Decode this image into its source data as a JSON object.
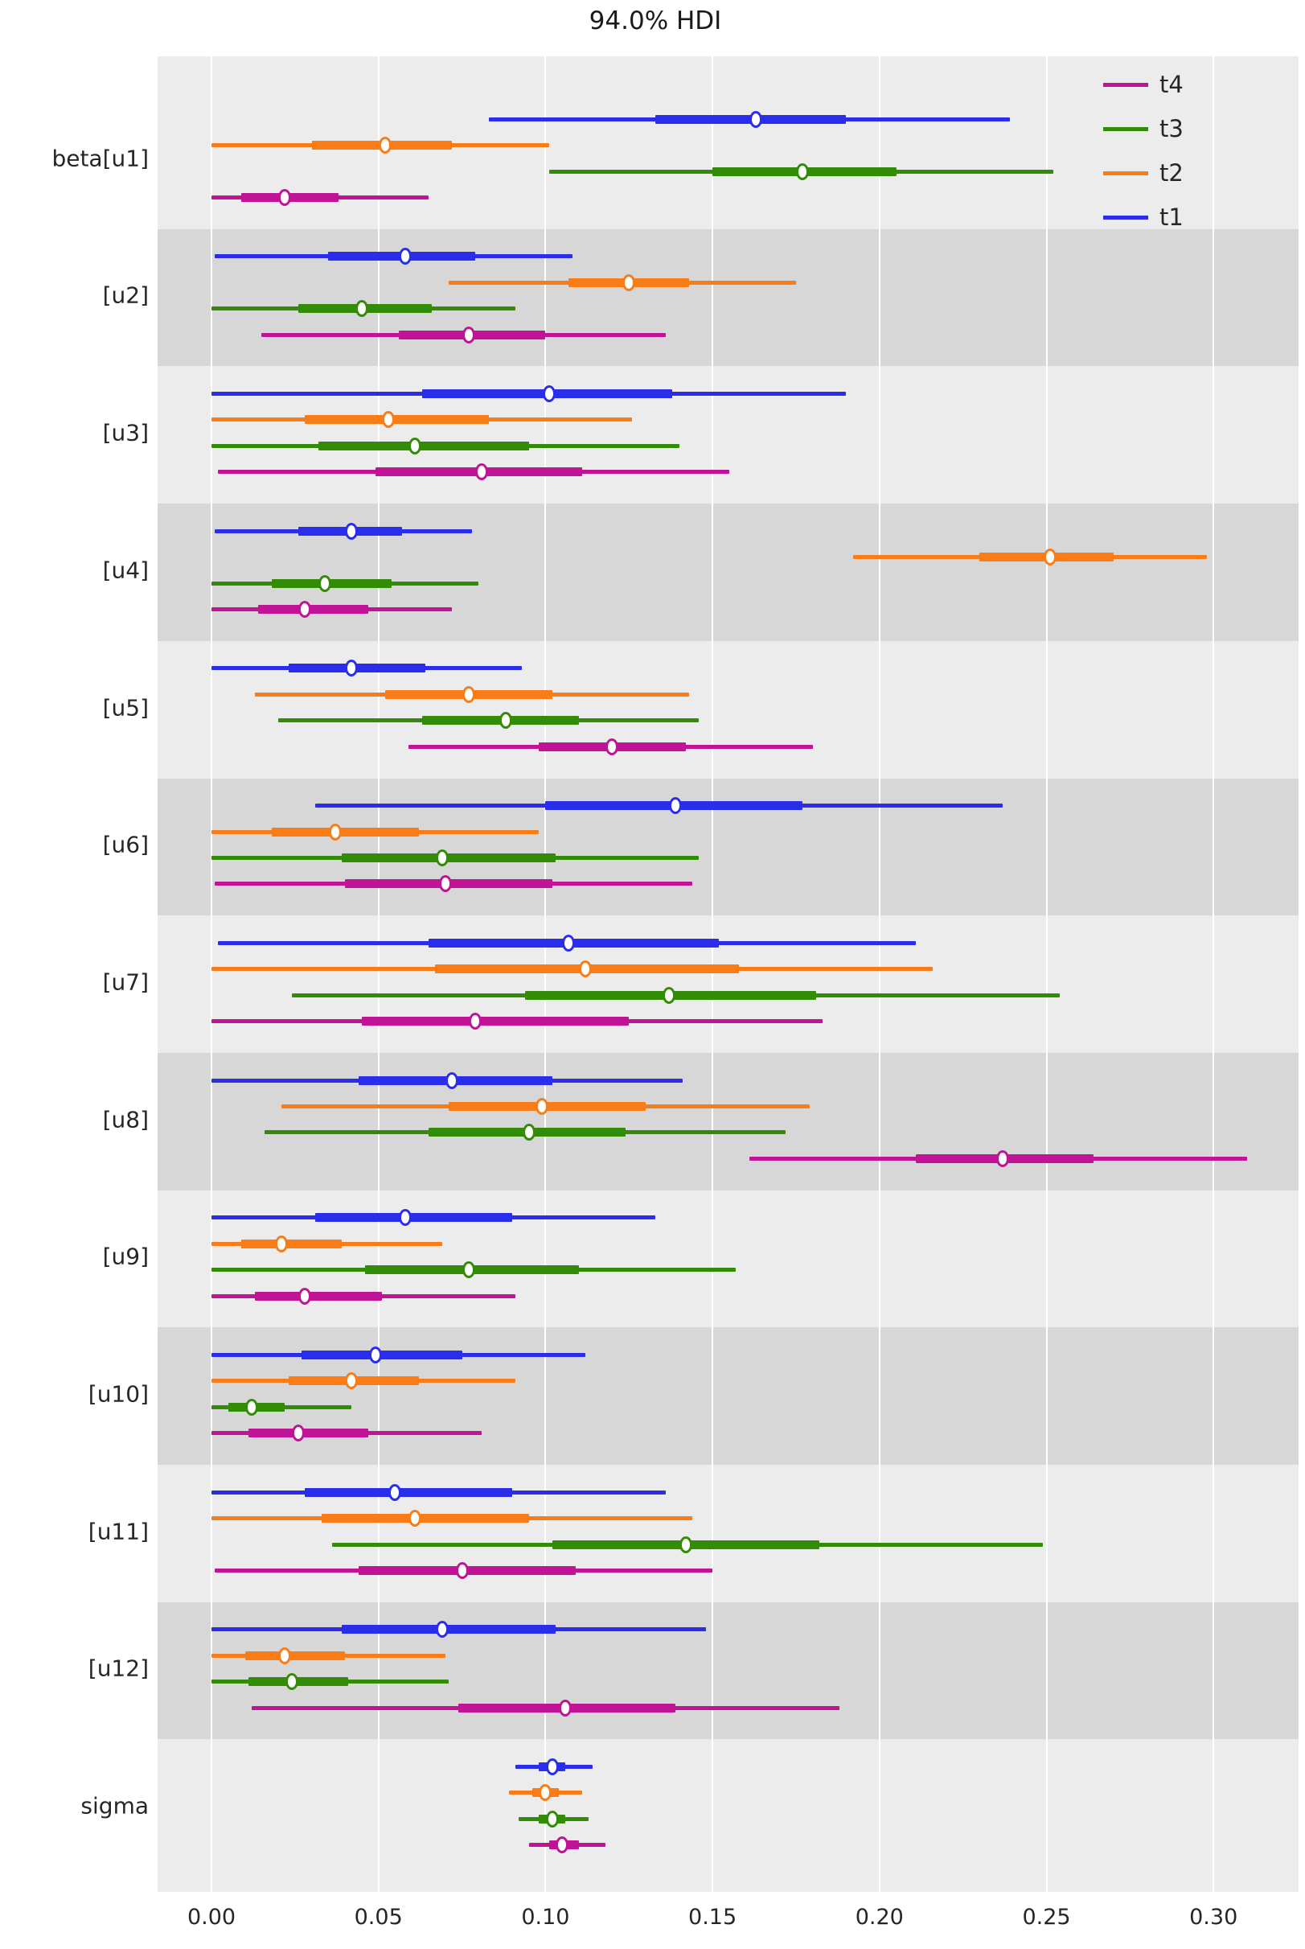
{
  "title": "94.0% HDI",
  "legend": {
    "entries": [
      {
        "label": "t4",
        "color": "#c01396"
      },
      {
        "label": "t3",
        "color": "#328c06"
      },
      {
        "label": "t2",
        "color": "#fa7c17"
      },
      {
        "label": "t1",
        "color": "#2a2eec"
      }
    ]
  },
  "style": {
    "band_light": "#ececec",
    "band_dark": "#d7d7d7",
    "gridline": "#ffffff",
    "text": "#262626",
    "background": "#ffffff"
  },
  "chart_data": {
    "type": "forest",
    "title": "94.0% HDI",
    "hdi_probability": "94.0%",
    "xlabel": "",
    "xlim": [
      -0.016,
      0.326
    ],
    "xticks": [
      0.0,
      0.05,
      0.1,
      0.15,
      0.2,
      0.25,
      0.3
    ],
    "xtick_labels": [
      "0.00",
      "0.05",
      "0.10",
      "0.15",
      "0.20",
      "0.25",
      "0.30"
    ],
    "grid": "vertical-white-on-gray",
    "legend_position": "upper-right-inside",
    "row_value_format": "[hdi_low, thick_low, median, thick_high, hdi_high]",
    "chains": [
      {
        "name": "t1",
        "color": "#2a2eec"
      },
      {
        "name": "t2",
        "color": "#fa7c17"
      },
      {
        "name": "t3",
        "color": "#328c06"
      },
      {
        "name": "t4",
        "color": "#c01396"
      }
    ],
    "parameters": [
      {
        "label": "beta[u1]",
        "rows": {
          "t1": [
            0.083,
            0.133,
            0.163,
            0.19,
            0.239
          ],
          "t2": [
            0.0,
            0.03,
            0.052,
            0.072,
            0.101
          ],
          "t3": [
            0.101,
            0.15,
            0.177,
            0.205,
            0.252
          ],
          "t4": [
            0.0,
            0.009,
            0.022,
            0.038,
            0.065
          ]
        }
      },
      {
        "label": "[u2]",
        "rows": {
          "t1": [
            0.001,
            0.035,
            0.058,
            0.079,
            0.108
          ],
          "t2": [
            0.071,
            0.107,
            0.125,
            0.143,
            0.175
          ],
          "t3": [
            0.0,
            0.026,
            0.045,
            0.066,
            0.091
          ],
          "t4": [
            0.015,
            0.056,
            0.077,
            0.1,
            0.136
          ]
        }
      },
      {
        "label": "[u3]",
        "rows": {
          "t1": [
            0.0,
            0.063,
            0.101,
            0.138,
            0.19
          ],
          "t2": [
            0.0,
            0.028,
            0.053,
            0.083,
            0.126
          ],
          "t3": [
            0.0,
            0.032,
            0.061,
            0.095,
            0.14
          ],
          "t4": [
            0.002,
            0.049,
            0.081,
            0.111,
            0.155
          ]
        }
      },
      {
        "label": "[u4]",
        "rows": {
          "t1": [
            0.001,
            0.026,
            0.042,
            0.057,
            0.078
          ],
          "t2": [
            0.192,
            0.23,
            0.251,
            0.27,
            0.298
          ],
          "t3": [
            0.0,
            0.018,
            0.034,
            0.054,
            0.08
          ],
          "t4": [
            0.0,
            0.014,
            0.028,
            0.047,
            0.072
          ]
        }
      },
      {
        "label": "[u5]",
        "rows": {
          "t1": [
            0.0,
            0.023,
            0.042,
            0.064,
            0.093
          ],
          "t2": [
            0.013,
            0.052,
            0.077,
            0.102,
            0.143
          ],
          "t3": [
            0.02,
            0.063,
            0.088,
            0.11,
            0.146
          ],
          "t4": [
            0.059,
            0.098,
            0.12,
            0.142,
            0.18
          ]
        }
      },
      {
        "label": "[u6]",
        "rows": {
          "t1": [
            0.031,
            0.1,
            0.139,
            0.177,
            0.237
          ],
          "t2": [
            0.0,
            0.018,
            0.037,
            0.062,
            0.098
          ],
          "t3": [
            0.0,
            0.039,
            0.069,
            0.103,
            0.146
          ],
          "t4": [
            0.001,
            0.04,
            0.07,
            0.102,
            0.144
          ]
        }
      },
      {
        "label": "[u7]",
        "rows": {
          "t1": [
            0.002,
            0.065,
            0.107,
            0.152,
            0.211
          ],
          "t2": [
            0.0,
            0.067,
            0.112,
            0.158,
            0.216
          ],
          "t3": [
            0.024,
            0.094,
            0.137,
            0.181,
            0.254
          ],
          "t4": [
            0.0,
            0.045,
            0.079,
            0.125,
            0.183
          ]
        }
      },
      {
        "label": "[u8]",
        "rows": {
          "t1": [
            0.0,
            0.044,
            0.072,
            0.102,
            0.141
          ],
          "t2": [
            0.021,
            0.071,
            0.099,
            0.13,
            0.179
          ],
          "t3": [
            0.016,
            0.065,
            0.095,
            0.124,
            0.172
          ],
          "t4": [
            0.161,
            0.211,
            0.237,
            0.264,
            0.31
          ]
        }
      },
      {
        "label": "[u9]",
        "rows": {
          "t1": [
            0.0,
            0.031,
            0.058,
            0.09,
            0.133
          ],
          "t2": [
            0.0,
            0.009,
            0.021,
            0.039,
            0.069
          ],
          "t3": [
            0.0,
            0.046,
            0.077,
            0.11,
            0.157
          ],
          "t4": [
            0.0,
            0.013,
            0.028,
            0.051,
            0.091
          ]
        }
      },
      {
        "label": "[u10]",
        "rows": {
          "t1": [
            0.0,
            0.027,
            0.049,
            0.075,
            0.112
          ],
          "t2": [
            0.0,
            0.023,
            0.042,
            0.062,
            0.091
          ],
          "t3": [
            0.0,
            0.005,
            0.012,
            0.022,
            0.042
          ],
          "t4": [
            0.0,
            0.011,
            0.026,
            0.047,
            0.081
          ]
        }
      },
      {
        "label": "[u11]",
        "rows": {
          "t1": [
            0.0,
            0.028,
            0.055,
            0.09,
            0.136
          ],
          "t2": [
            0.0,
            0.033,
            0.061,
            0.095,
            0.144
          ],
          "t3": [
            0.036,
            0.102,
            0.142,
            0.182,
            0.249
          ],
          "t4": [
            0.001,
            0.044,
            0.075,
            0.109,
            0.15
          ]
        }
      },
      {
        "label": "[u12]",
        "rows": {
          "t1": [
            0.0,
            0.039,
            0.069,
            0.103,
            0.148
          ],
          "t2": [
            0.0,
            0.01,
            0.022,
            0.04,
            0.07
          ],
          "t3": [
            0.0,
            0.011,
            0.024,
            0.041,
            0.071
          ],
          "t4": [
            0.012,
            0.074,
            0.106,
            0.139,
            0.188
          ]
        }
      },
      {
        "label": "sigma",
        "rows": {
          "t1": [
            0.091,
            0.098,
            0.102,
            0.106,
            0.114
          ],
          "t2": [
            0.089,
            0.096,
            0.1,
            0.104,
            0.111
          ],
          "t3": [
            0.092,
            0.098,
            0.102,
            0.106,
            0.113
          ],
          "t4": [
            0.095,
            0.101,
            0.105,
            0.11,
            0.118
          ]
        }
      }
    ]
  }
}
